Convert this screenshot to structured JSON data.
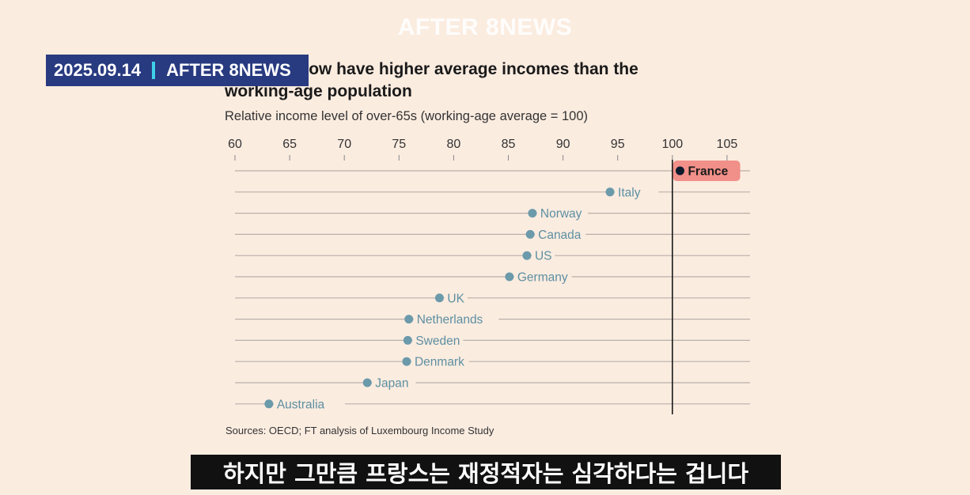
{
  "watermark": "AFTER 8NEWS",
  "badge": {
    "date": "2025.09.14",
    "channel": "AFTER 8NEWS"
  },
  "title_visible": "nsioners now have higher average incomes than the working-age population",
  "caption": "하지만 그만큼 프랑스는 재정적자는 심각하다는 겁니다",
  "chart_data": {
    "type": "dot",
    "title": "Pensioners now have higher average incomes than the working-age population",
    "subtitle": "Relative income level of over-65s (working-age average = 100)",
    "source": "Sources: OECD; FT analysis of Luxembourg Income Study",
    "xlim": [
      60,
      107
    ],
    "ticks": [
      60,
      65,
      70,
      75,
      80,
      85,
      90,
      95,
      100,
      105
    ],
    "reference_line": 100,
    "categories": [
      "France",
      "Italy",
      "Norway",
      "Canada",
      "US",
      "Germany",
      "UK",
      "Netherlands",
      "Sweden",
      "Denmark",
      "Japan",
      "Australia"
    ],
    "values": [
      100.7,
      94.3,
      87.2,
      87.0,
      86.7,
      85.1,
      78.7,
      75.9,
      75.8,
      75.7,
      72.1,
      63.1
    ],
    "highlight": "France",
    "colors": {
      "dot": "#6b9aab",
      "highlight_dot": "#0d1a2e",
      "highlight_bg": "#f09089",
      "line": "#b8b0aa",
      "reference": "#1a1a1a"
    }
  }
}
